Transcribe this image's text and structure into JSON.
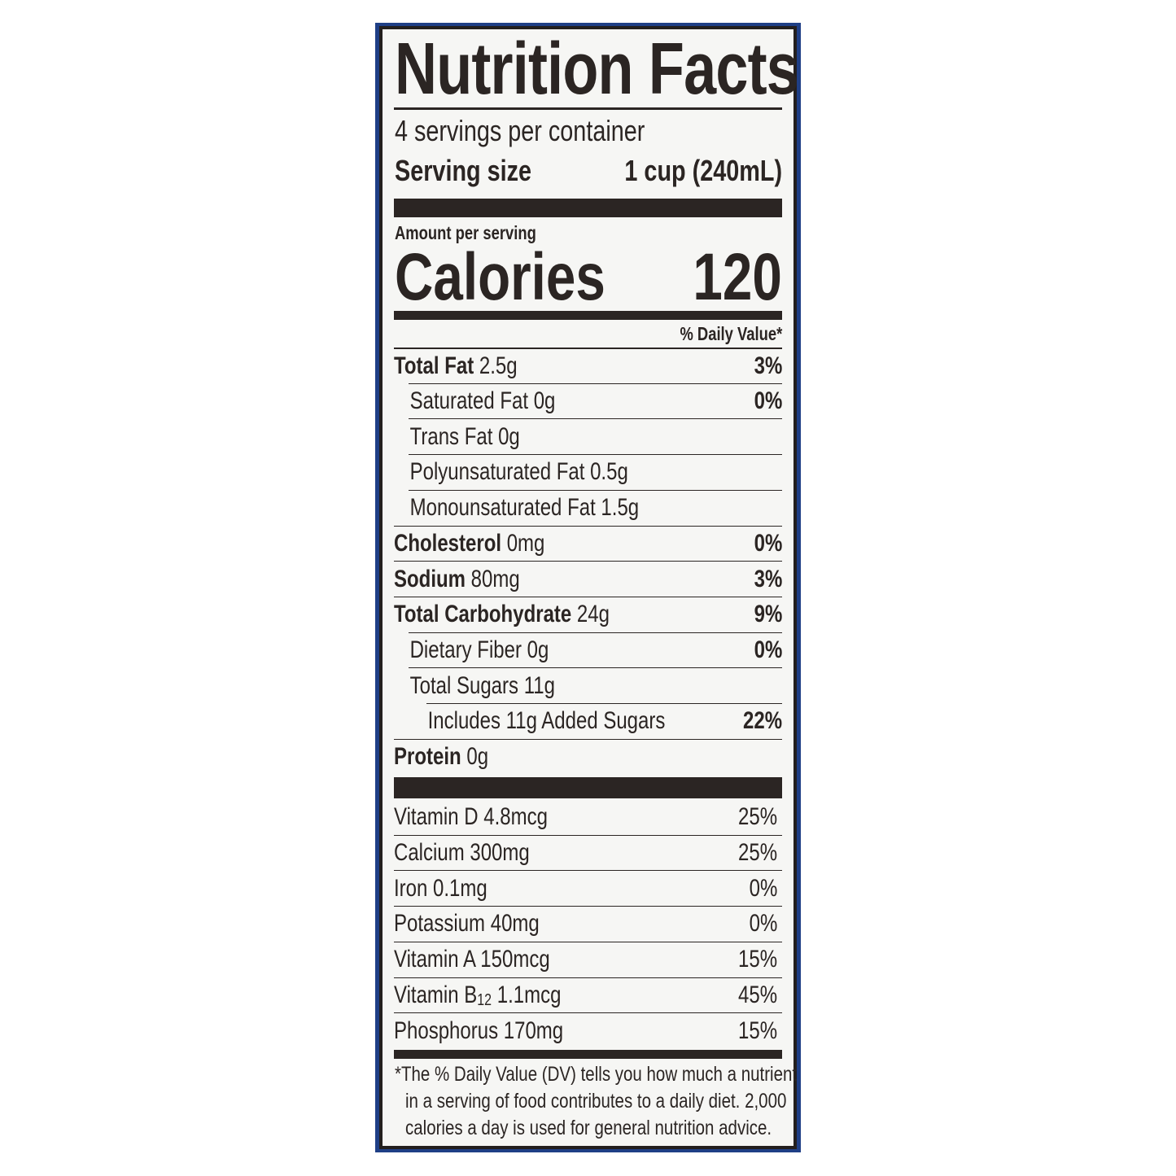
{
  "title": "Nutrition Facts",
  "servings_per_container": "4 servings per container",
  "serving_size": {
    "label": "Serving size",
    "value": "1 cup (240mL)"
  },
  "amount_per_serving": "Amount per serving",
  "calories": {
    "label": "Calories",
    "value": "120"
  },
  "daily_value_header": "% Daily Value*",
  "nutrients": [
    {
      "name": "Total Fat",
      "amount": "2.5g",
      "dv": "3%",
      "bold": true,
      "indent": 0
    },
    {
      "name": "Saturated Fat",
      "amount": "0g",
      "dv": "0%",
      "bold": false,
      "indent": 1
    },
    {
      "name": "Trans Fat",
      "amount": "0g",
      "dv": "",
      "bold": false,
      "indent": 1
    },
    {
      "name": "Polyunsaturated Fat",
      "amount": "0.5g",
      "dv": "",
      "bold": false,
      "indent": 1
    },
    {
      "name": "Monounsaturated Fat",
      "amount": "1.5g",
      "dv": "",
      "bold": false,
      "indent": 1
    },
    {
      "name": "Cholesterol",
      "amount": "0mg",
      "dv": "0%",
      "bold": true,
      "indent": 0
    },
    {
      "name": "Sodium",
      "amount": "80mg",
      "dv": "3%",
      "bold": true,
      "indent": 0
    },
    {
      "name": "Total Carbohydrate",
      "amount": "24g",
      "dv": "9%",
      "bold": true,
      "indent": 0
    },
    {
      "name": "Dietary Fiber",
      "amount": "0g",
      "dv": "0%",
      "bold": false,
      "indent": 1
    },
    {
      "name": "Total Sugars",
      "amount": "11g",
      "dv": "",
      "bold": false,
      "indent": 1
    },
    {
      "name": "Includes 11g Added Sugars",
      "amount": "",
      "dv": "22%",
      "bold": false,
      "indent": 2
    },
    {
      "name": "Protein",
      "amount": "0g",
      "dv": "",
      "bold": true,
      "indent": 0
    }
  ],
  "vitamins": [
    {
      "name": "Vitamin D",
      "amount": "4.8mcg",
      "dv": "25%"
    },
    {
      "name": "Calcium",
      "amount": "300mg",
      "dv": "25%"
    },
    {
      "name": "Iron",
      "amount": "0.1mg",
      "dv": "0%"
    },
    {
      "name": "Potassium",
      "amount": "40mg",
      "dv": "0%"
    },
    {
      "name": "Vitamin A",
      "amount": "150mcg",
      "dv": "15%"
    },
    {
      "name": "Vitamin B",
      "sub": "12",
      "amount": "1.1mcg",
      "dv": "45%"
    },
    {
      "name": "Phosphorus",
      "amount": "170mg",
      "dv": "15%"
    }
  ],
  "footnote": [
    "*The % Daily Value (DV) tells you how much a nutrient",
    "in a serving of food contributes to a daily diet. 2,000",
    "calories a day is used for general nutrition advice."
  ],
  "colors": {
    "border": "#1f3f86",
    "ink": "#2b2523",
    "paper": "#f6f6f4"
  }
}
